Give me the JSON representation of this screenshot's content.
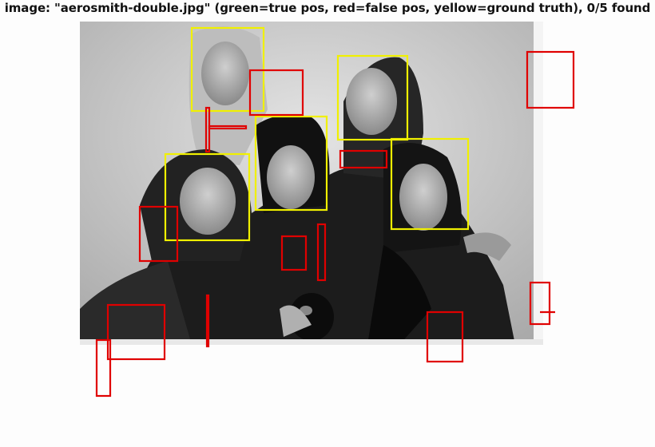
{
  "figure": {
    "title": "image: \"aerosmith-double.jpg\" (green=true pos, red=false pos, yellow=ground truth), 0/5 found"
  },
  "legend_colors": {
    "true_pos": "#00c000",
    "false_pos": "#e00000",
    "ground_truth": "#f0f000"
  },
  "detections": {
    "ground_truth_count": 5,
    "false_positive_count": 15,
    "true_positive_count": 0,
    "found": 0,
    "total": 5
  }
}
